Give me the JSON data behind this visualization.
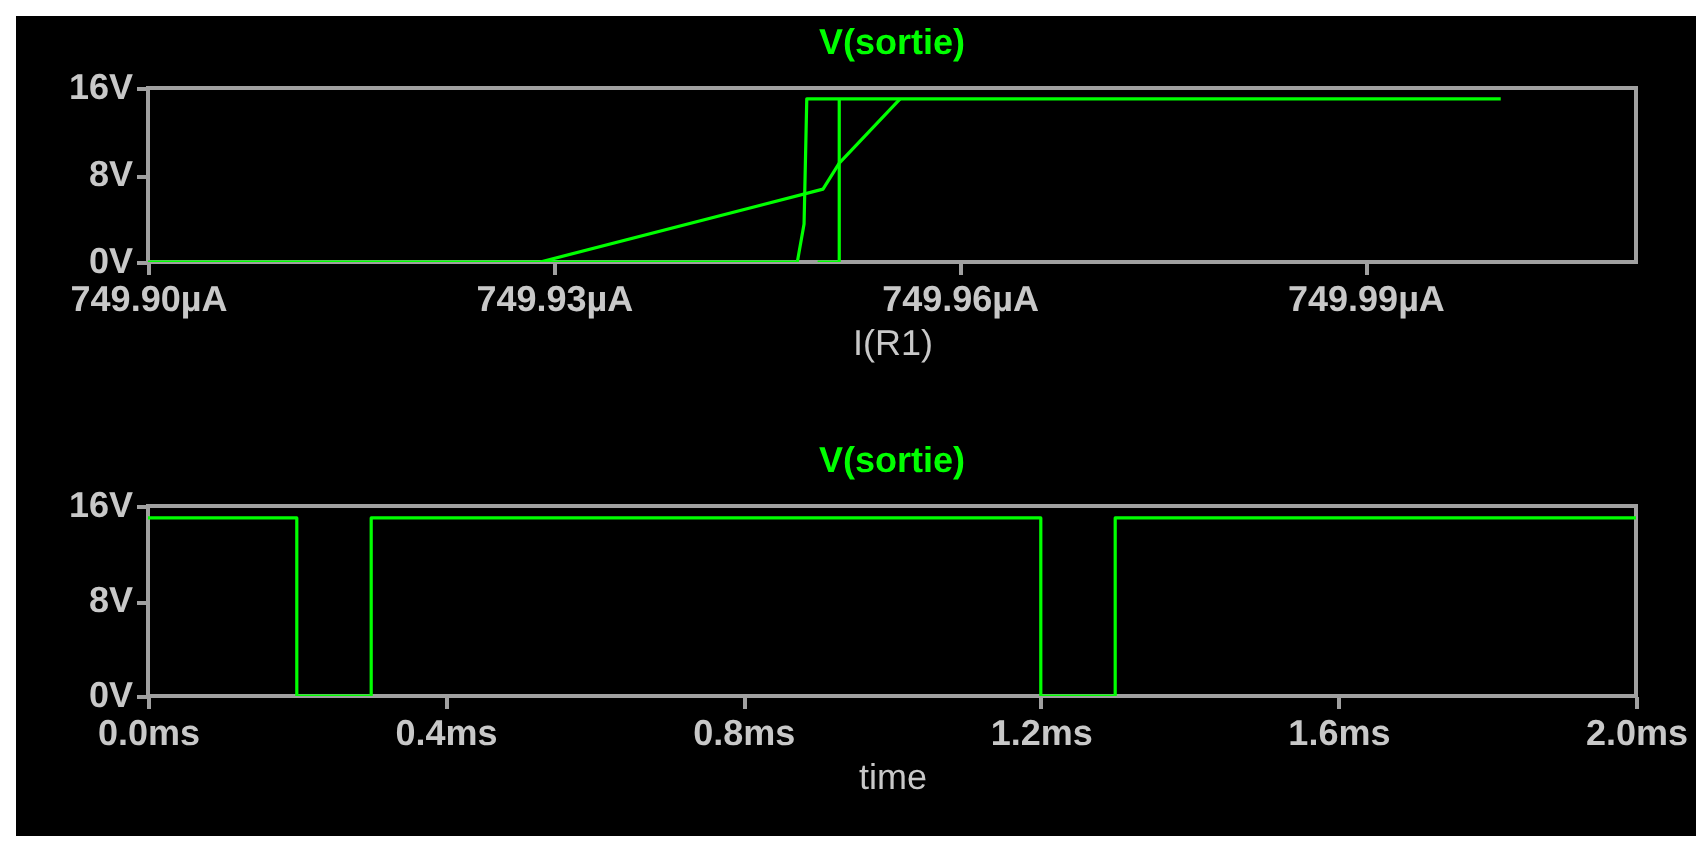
{
  "chart_data": [
    {
      "type": "line",
      "title": "V(sortie)",
      "xlabel": "I(R1)",
      "xlim": [
        749.9,
        750.01
      ],
      "xticks": [
        {
          "value": 749.9,
          "label": "749.90µA"
        },
        {
          "value": 749.93,
          "label": "749.93µA"
        },
        {
          "value": 749.96,
          "label": "749.96µA"
        },
        {
          "value": 749.99,
          "label": "749.99µA"
        }
      ],
      "ylim": [
        0,
        16
      ],
      "yticks": [
        {
          "value": 0,
          "label": "0V"
        },
        {
          "value": 8,
          "label": "8V"
        },
        {
          "value": 16,
          "label": "16V"
        }
      ],
      "grid": false,
      "legend": false,
      "series": [
        {
          "color": "#00ff00",
          "x": [
            749.9,
            749.948,
            749.9485,
            749.9487,
            750.0
          ],
          "values": [
            0,
            0,
            3.5,
            15,
            15
          ]
        },
        {
          "color": "#00ff00",
          "x": [
            749.9495,
            749.9511,
            749.9511
          ],
          "values": [
            0,
            0,
            15
          ]
        },
        {
          "color": "#00ff00",
          "x": [
            749.929,
            749.9499,
            749.9511,
            749.9556
          ],
          "values": [
            0,
            6.7,
            9.1,
            15
          ]
        }
      ]
    },
    {
      "type": "line",
      "title": "V(sortie)",
      "xlabel": "time",
      "xlim": [
        0,
        2
      ],
      "xticks": [
        {
          "value": 0,
          "label": "0.0ms"
        },
        {
          "value": 0.4,
          "label": "0.4ms"
        },
        {
          "value": 0.8,
          "label": "0.8ms"
        },
        {
          "value": 1.2,
          "label": "1.2ms"
        },
        {
          "value": 1.6,
          "label": "1.6ms"
        },
        {
          "value": 2,
          "label": "2.0ms"
        }
      ],
      "ylim": [
        0,
        16
      ],
      "yticks": [
        {
          "value": 0,
          "label": "0V"
        },
        {
          "value": 8,
          "label": "8V"
        },
        {
          "value": 16,
          "label": "16V"
        }
      ],
      "grid": false,
      "legend": false,
      "series": [
        {
          "color": "#00ff00",
          "x": [
            0,
            0.2,
            0.2,
            0.3,
            0.3,
            1.2,
            1.2,
            1.3,
            1.3,
            2.0
          ],
          "values": [
            15,
            15,
            0,
            0,
            15,
            15,
            0,
            0,
            15,
            15
          ]
        }
      ]
    }
  ]
}
